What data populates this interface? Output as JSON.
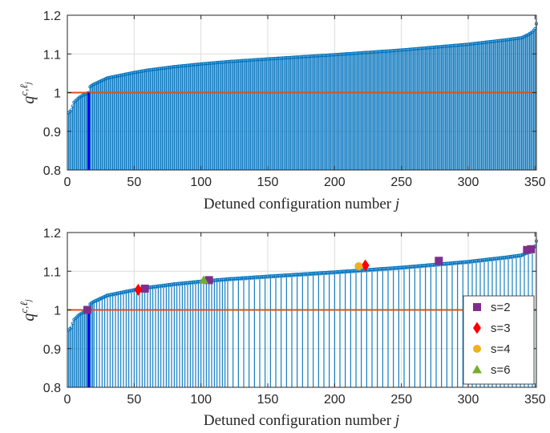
{
  "chart_data": [
    {
      "type": "stem",
      "xlabel": "Detuned configuration number",
      "xlabel_var": "j",
      "ylabel": "q",
      "ylabel_sup": "c,ℓ",
      "ylabel_sub": "j",
      "xlim": [
        0,
        351
      ],
      "ylim": [
        0.8,
        1.2
      ],
      "xticks": [
        0,
        50,
        100,
        150,
        200,
        250,
        300,
        350
      ],
      "yticks": [
        0.8,
        0.9,
        1,
        1.1,
        1.2
      ],
      "ytick_labels": [
        "0.8",
        "0.9",
        "1",
        "1.1",
        "1.2"
      ],
      "grid": true,
      "reference_line": {
        "y": 1.0,
        "color": "#d95319"
      },
      "highlight": {
        "x": 16,
        "y": 1.0,
        "color": "#0000ff"
      },
      "series_color": "#0072bd",
      "curve_knots": {
        "x": [
          1,
          3,
          5,
          8,
          10,
          12,
          14,
          15,
          16,
          17,
          18,
          20,
          25,
          30,
          40,
          50,
          60,
          80,
          100,
          120,
          150,
          200,
          250,
          300,
          330,
          340,
          345,
          348,
          350,
          351
        ],
        "y": [
          0.948,
          0.955,
          0.975,
          0.985,
          0.99,
          0.994,
          0.997,
          0.999,
          1.0,
          1.015,
          1.018,
          1.022,
          1.03,
          1.038,
          1.045,
          1.052,
          1.058,
          1.067,
          1.074,
          1.08,
          1.087,
          1.098,
          1.11,
          1.125,
          1.137,
          1.142,
          1.15,
          1.157,
          1.165,
          1.178
        ]
      },
      "n_points": 351
    },
    {
      "type": "stem",
      "xlabel": "Detuned configuration number",
      "xlabel_var": "j",
      "ylabel": "q",
      "ylabel_sup": "c,ℓ",
      "ylabel_sub": "j",
      "xlim": [
        0,
        351
      ],
      "ylim": [
        0.8,
        1.2
      ],
      "xticks": [
        0,
        50,
        100,
        150,
        200,
        250,
        300,
        350
      ],
      "yticks": [
        0.8,
        0.9,
        1,
        1.1,
        1.2
      ],
      "ytick_labels": [
        "0.8",
        "0.9",
        "1",
        "1.1",
        "1.2"
      ],
      "grid": true,
      "reference_line": {
        "y": 1.0,
        "color": "#d95319"
      },
      "highlight": {
        "x": 16,
        "y": 1.0,
        "color": "#0000ff"
      },
      "series_color": "#0072bd",
      "stem_pattern": "sparse",
      "legend": {
        "position": "bottom-right",
        "entries": [
          {
            "label": "s=2",
            "marker": "square",
            "color": "#7e2f8e"
          },
          {
            "label": "s=3",
            "marker": "diamond",
            "color": "#ff0000"
          },
          {
            "label": "s=4",
            "marker": "circle",
            "color": "#edb120"
          },
          {
            "label": "s=6",
            "marker": "triangle",
            "color": "#77ac30"
          }
        ]
      },
      "markers": [
        {
          "x": 15,
          "y": 1.0,
          "s": "s=2"
        },
        {
          "x": 58,
          "y": 1.055,
          "s": "s=2"
        },
        {
          "x": 106,
          "y": 1.077,
          "s": "s=2"
        },
        {
          "x": 278,
          "y": 1.127,
          "s": "s=2"
        },
        {
          "x": 344,
          "y": 1.155,
          "s": "s=2"
        },
        {
          "x": 347,
          "y": 1.157,
          "s": "s=2"
        },
        {
          "x": 53,
          "y": 1.052,
          "s": "s=3"
        },
        {
          "x": 223,
          "y": 1.115,
          "s": "s=3"
        },
        {
          "x": 218,
          "y": 1.113,
          "s": "s=4"
        },
        {
          "x": 102,
          "y": 1.077,
          "s": "s=6"
        }
      ]
    }
  ]
}
